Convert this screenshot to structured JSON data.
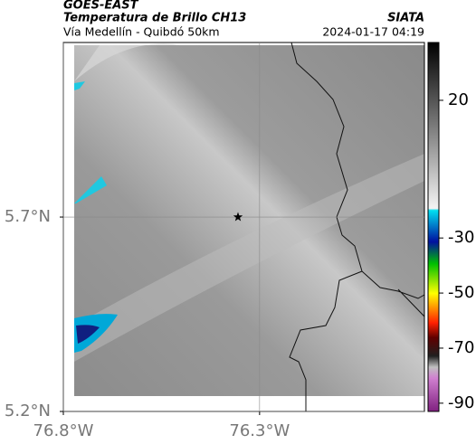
{
  "header": {
    "satellite": "GOES-EAST",
    "product": "Temperatura de Brillo CH13",
    "route": "Vía Medellín - Quibdó 50km",
    "agency": "SIATA",
    "datetime": "2024-01-17 04:19"
  },
  "map": {
    "xlim": [
      -76.8,
      -75.88
    ],
    "ylim": [
      5.2,
      6.149
    ],
    "xticks": [
      {
        "value": -76.8,
        "label": "76.8°W"
      },
      {
        "value": -76.3,
        "label": "76.3°W"
      }
    ],
    "yticks": [
      {
        "value": 5.2,
        "label": "5.2°N"
      },
      {
        "value": 5.7,
        "label": "5.7°N"
      }
    ],
    "marker": {
      "lon": -76.355,
      "lat": 5.7
    }
  },
  "colorbar": {
    "lim": [
      -93,
      41
    ],
    "ticks": [
      20,
      -30,
      -50,
      -70,
      -90
    ]
  }
}
